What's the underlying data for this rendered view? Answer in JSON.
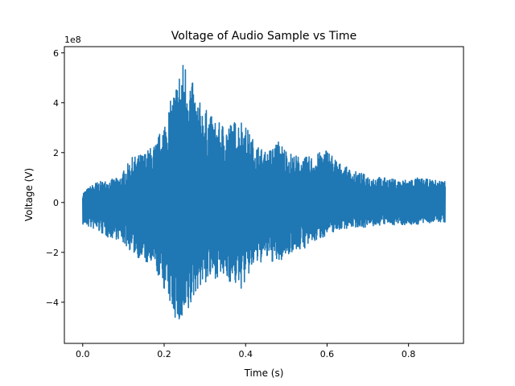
{
  "chart_data": {
    "type": "line",
    "title": "Voltage of Audio Sample vs Time",
    "xlabel": "Time (s)",
    "ylabel": "Voltage (V)",
    "y_offset_text": "1e8",
    "xlim": [
      -0.045,
      0.935
    ],
    "ylim": [
      -5.65,
      6.25
    ],
    "y_scale_factor": 100000000,
    "x_ticks": [
      0.0,
      0.2,
      0.4,
      0.6,
      0.8
    ],
    "x_tick_labels": [
      "0.0",
      "0.2",
      "0.4",
      "0.6",
      "0.8"
    ],
    "y_ticks": [
      -4,
      -2,
      0,
      2,
      4,
      6
    ],
    "y_tick_labels": [
      "−4",
      "−2",
      "0",
      "2",
      "4",
      "6"
    ],
    "grid": false,
    "series": [
      {
        "color": "#1f77b4",
        "description": "dense oscillating audio waveform; envelope values in units of 1e8 V",
        "x_range": [
          0.0,
          0.89
        ],
        "envelope": {
          "t": [
            0.0,
            0.03,
            0.06,
            0.09,
            0.12,
            0.15,
            0.18,
            0.2,
            0.22,
            0.24,
            0.25,
            0.26,
            0.28,
            0.3,
            0.33,
            0.36,
            0.39,
            0.42,
            0.45,
            0.48,
            0.51,
            0.54,
            0.57,
            0.6,
            0.63,
            0.66,
            0.7,
            0.74,
            0.78,
            0.82,
            0.86,
            0.89
          ],
          "upper": [
            0.4,
            0.8,
            0.9,
            1.0,
            1.8,
            2.0,
            2.4,
            3.3,
            4.3,
            5.5,
            5.8,
            5.4,
            4.2,
            3.8,
            3.2,
            3.2,
            3.4,
            2.5,
            2.0,
            2.5,
            2.0,
            1.8,
            1.9,
            2.2,
            1.6,
            1.3,
            1.1,
            1.0,
            0.9,
            1.0,
            0.9,
            0.9
          ],
          "lower": [
            -0.9,
            -1.1,
            -1.4,
            -1.5,
            -2.0,
            -2.4,
            -2.8,
            -3.5,
            -4.4,
            -5.2,
            -5.1,
            -4.6,
            -3.5,
            -3.3,
            -3.0,
            -3.2,
            -3.5,
            -2.6,
            -2.3,
            -2.5,
            -2.0,
            -1.9,
            -1.6,
            -1.3,
            -1.1,
            -1.0,
            -1.0,
            -0.9,
            -0.9,
            -0.9,
            -0.8,
            -0.8
          ]
        }
      }
    ]
  }
}
